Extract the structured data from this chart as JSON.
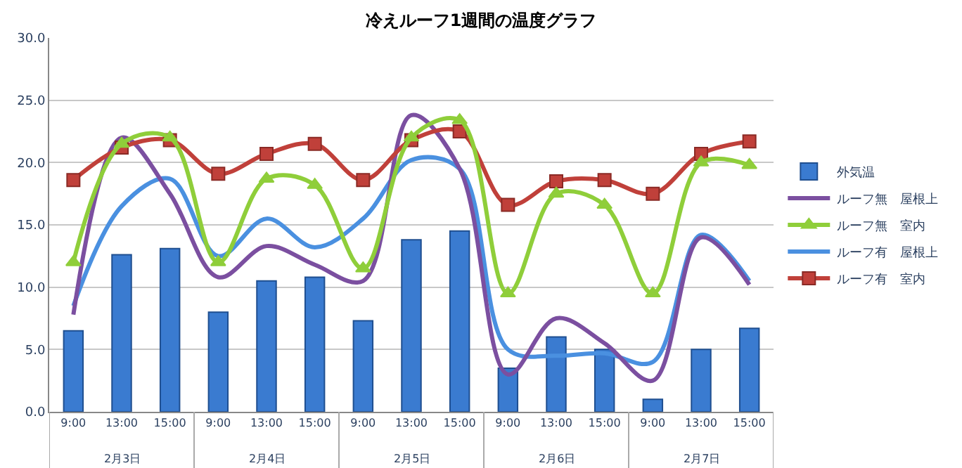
{
  "chart_data": {
    "type": "bar",
    "title": "冷えルーフ1週間の温度グラフ",
    "categories": [
      "9:00",
      "13:00",
      "15:00",
      "9:00",
      "13:00",
      "15:00",
      "9:00",
      "13:00",
      "15:00",
      "9:00",
      "13:00",
      "15:00",
      "9:00",
      "13:00",
      "15:00"
    ],
    "annotations": [
      "2月3日",
      "2月4日",
      "2月5日",
      "2月6日",
      "2月7日"
    ],
    "series": [
      {
        "name": "外気温",
        "color": "#3a7bd0",
        "values": [
          6.5,
          12.6,
          13.1,
          8.0,
          10.5,
          10.8,
          7.3,
          13.8,
          14.5,
          3.5,
          6.0,
          5.0,
          1.0,
          5.0,
          6.7
        ]
      },
      {
        "name": "ルーフ無　屋根上",
        "type": "line",
        "marker": "none",
        "color": "#7b4fa0",
        "values": [
          7.8,
          22.0,
          17.5,
          10.8,
          13.3,
          11.8,
          10.5,
          23.8,
          19.5,
          3.0,
          7.5,
          5.5,
          2.5,
          14.0,
          10.2
        ]
      },
      {
        "name": "ルーフ無　室内",
        "type": "line",
        "marker": "triangle",
        "color": "#8fce3a",
        "values": [
          12.0,
          21.5,
          22.0,
          12.0,
          18.7,
          18.2,
          11.5,
          22.0,
          23.4,
          9.5,
          17.5,
          16.6,
          9.5,
          20.0,
          19.8
        ]
      },
      {
        "name": "ルーフ有　屋根上",
        "type": "line",
        "marker": "none",
        "color": "#4a90e0",
        "values": [
          8.5,
          16.5,
          18.7,
          12.5,
          15.5,
          13.2,
          15.5,
          20.2,
          19.5,
          5.0,
          4.5,
          4.7,
          4.0,
          14.2,
          10.5
        ]
      },
      {
        "name": "ルーフ有　室内",
        "type": "line",
        "marker": "square",
        "color": "#c0403a",
        "values": [
          18.6,
          21.2,
          21.8,
          19.1,
          20.7,
          21.5,
          18.6,
          21.8,
          22.5,
          16.6,
          18.5,
          18.6,
          17.5,
          20.7,
          21.7
        ]
      }
    ],
    "ylim": [
      0,
      30
    ],
    "yticks": [
      {
        "value": 0,
        "label": "0.0"
      },
      {
        "value": 5,
        "label": "5.0"
      },
      {
        "value": 10,
        "label": "10.0"
      },
      {
        "value": 15,
        "label": "15.0"
      },
      {
        "value": 20,
        "label": "20.0"
      },
      {
        "value": 25,
        "label": "25.0"
      },
      {
        "value": 30,
        "label": "30.0"
      }
    ],
    "grid": "y",
    "legend": "right"
  }
}
